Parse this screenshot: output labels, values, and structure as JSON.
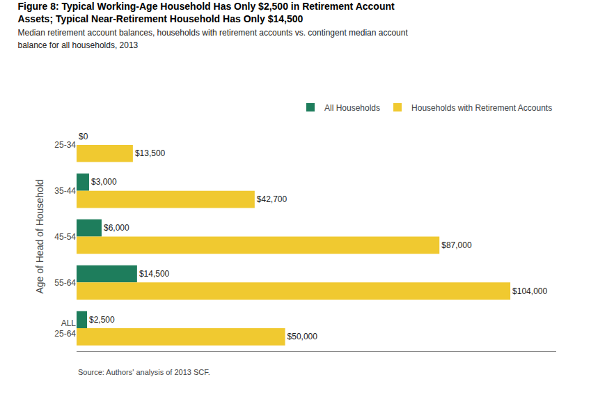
{
  "chart_data": {
    "type": "bar",
    "orientation": "horizontal",
    "title": "Figure 8: Typical Working-Age Household Has Only $2,500 in Retirement Account\nAssets; Typical Near-Retirement Household Has Only $14,500",
    "subtitle": "Median retirement account balances, households with retirement accounts vs. contingent median account\nbalance for all households, 2013",
    "ylabel": "Age of Head of Household",
    "source": "Source: Authors' analysis of 2013 SCF.",
    "categories": [
      "25-34",
      "35-44",
      "45-54",
      "55-64",
      "ALL\n25-64"
    ],
    "series": [
      {
        "name": "All Households",
        "color": "#1e7d5c",
        "values": [
          0,
          3000,
          6000,
          14500,
          2500
        ],
        "value_labels": [
          "$0",
          "$3,000",
          "$6,000",
          "$14,500",
          "$2,500"
        ]
      },
      {
        "name": "Households with Retirement Accounts",
        "color": "#f0c930",
        "values": [
          13500,
          42700,
          87000,
          104000,
          50000
        ],
        "value_labels": [
          "$13,500",
          "$42,700",
          "$87,000",
          "$104,000",
          "$50,000"
        ]
      }
    ],
    "xlim": [
      0,
      115000
    ],
    "data_labels": true,
    "tick_labels": "y",
    "legend": "upper right",
    "grid": false
  }
}
